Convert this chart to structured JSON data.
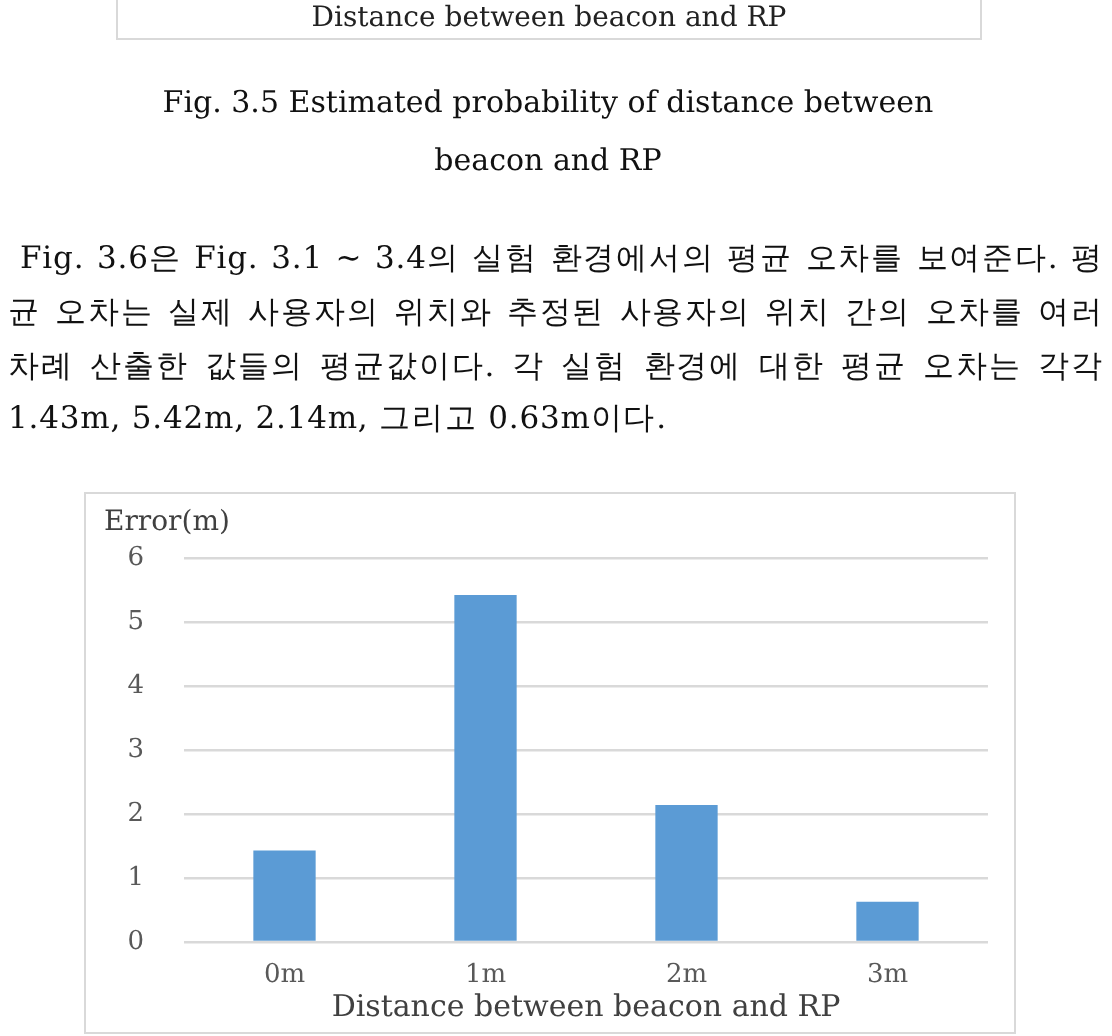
{
  "chart_data": {
    "type": "bar",
    "categories": [
      "0m",
      "1m",
      "2m",
      "3m"
    ],
    "values": [
      1.43,
      5.42,
      2.14,
      0.63
    ],
    "color": "#5b9bd5",
    "xlabel": "Distance between beacon and RP",
    "ylabel": "Error(m)",
    "ylim": [
      0,
      6
    ],
    "yticks": [
      0,
      1,
      2,
      3,
      4,
      5,
      6
    ],
    "grid": "y",
    "annotations": [
      "Distance between beacon and RP",
      "Fig. 3.5 Estimated probability of distance between beacon and RP",
      "Fig. 3.6은 Fig. 3.1 ~ 3.4의 실험 환경에서의 평균 오차를 보여준다. 평균 오차는 실제 사용자의 위치와 추정된 사용자의 위치 간의 오차를 여러 차례 산출한 값들의 평균값이다. 각 실험 환경에 대한 평균 오차는 각각 1.43m, 5.42m, 2.14m, 그리고 0.63m이다."
    ]
  }
}
